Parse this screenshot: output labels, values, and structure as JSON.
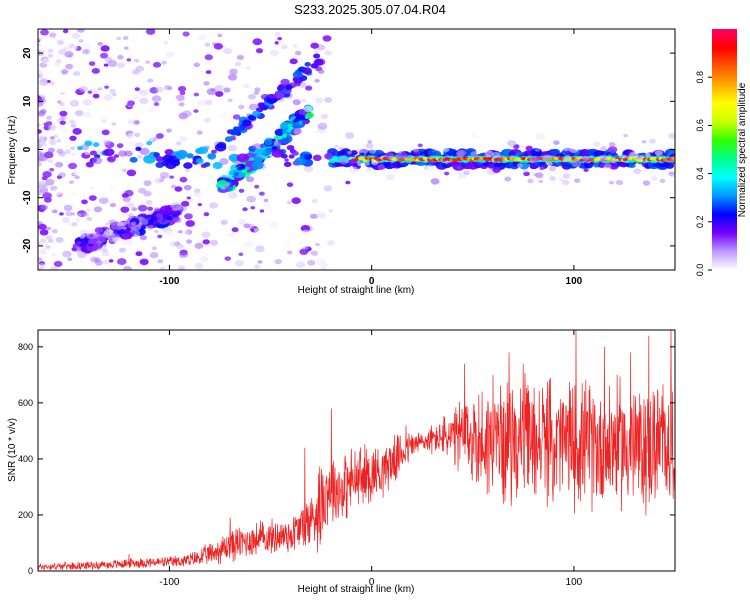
{
  "title": "S233.2025.305.07.04.R04",
  "colors": {
    "snr_line": "#ee2222",
    "heat_base": "#6a00ff",
    "heat_ridge": "#00ff66",
    "heat_core": "#ff2020"
  },
  "chart_data": [
    {
      "type": "heatmap",
      "title": "S233.2025.305.07.04.R04",
      "xlabel": "Height of straight line (km)",
      "ylabel": "Frequency (Hz)",
      "xlim": [
        -165,
        150
      ],
      "ylim": [
        -25,
        25
      ],
      "xticks": [
        -100,
        0,
        100
      ],
      "xtick_labels": [
        "-100",
        "0",
        "100"
      ],
      "yticks": [
        -20,
        -10,
        0,
        10,
        20
      ],
      "ytick_labels": [
        "-20",
        "-10",
        "0",
        "10",
        "20"
      ],
      "colorbar": {
        "label": "Normalized spectral amplitude",
        "range": [
          0,
          1
        ],
        "ticks": [
          0.0,
          0.2,
          0.4,
          0.6,
          0.8
        ],
        "tick_labels": [
          "0.0",
          "0.2",
          "0.4",
          "0.6",
          "0.8"
        ],
        "stops": [
          "#ffffff",
          "#bb99ff",
          "#7700ff",
          "#0000ff",
          "#0099ff",
          "#00ffff",
          "#00ff88",
          "#33ff00",
          "#ccff00",
          "#ffff00",
          "#ffaa00",
          "#ff5500",
          "#ff0000",
          "#ff0066"
        ]
      },
      "features": [
        {
          "name": "horizontal ridge",
          "x_range": [
            -20,
            150
          ],
          "frequency_hz": -2,
          "amplitude_range": [
            0.4,
            1.0
          ]
        },
        {
          "name": "rising branch",
          "x_range": [
            -75,
            -30
          ],
          "frequency_start_hz": -8,
          "frequency_end_hz": 8,
          "amplitude_range": [
            0.2,
            0.5
          ]
        },
        {
          "name": "lower branch",
          "x_range": [
            -145,
            -95
          ],
          "frequency_start_hz": -20,
          "frequency_end_hz": -13,
          "amplitude_range": [
            0.1,
            0.25
          ]
        },
        {
          "name": "scattered low-level noise",
          "x_range": [
            -165,
            150
          ],
          "frequency_range_hz": [
            -25,
            25
          ],
          "amplitude_range": [
            0.0,
            0.15
          ]
        }
      ]
    },
    {
      "type": "line",
      "xlabel": "Height of straight line (km)",
      "ylabel": "SNR (10 * v/v)",
      "xlim": [
        -165,
        150
      ],
      "ylim": [
        0,
        860
      ],
      "xticks": [
        -100,
        0,
        100
      ],
      "xtick_labels": [
        "-100",
        "0",
        "100"
      ],
      "yticks": [
        0,
        200,
        400,
        600,
        800
      ],
      "ytick_labels": [
        "0",
        "200",
        "400",
        "600",
        "800"
      ],
      "series": [
        {
          "name": "SNR",
          "x": [
            -165,
            -150,
            -130,
            -120,
            -110,
            -100,
            -90,
            -80,
            -70,
            -60,
            -50,
            -40,
            -30,
            -25,
            -22,
            -20,
            -15,
            -10,
            -5,
            0,
            5,
            10,
            15,
            20,
            25,
            30,
            35,
            40,
            45,
            50,
            55,
            60,
            65,
            70,
            75,
            80,
            85,
            90,
            95,
            100,
            105,
            110,
            115,
            120,
            125,
            130,
            135,
            140,
            145,
            150
          ],
          "mean": [
            15,
            18,
            22,
            28,
            30,
            32,
            38,
            60,
            90,
            110,
            120,
            130,
            180,
            250,
            290,
            300,
            290,
            320,
            330,
            350,
            360,
            390,
            420,
            450,
            460,
            470,
            480,
            470,
            480,
            470,
            460,
            470,
            460,
            470,
            470,
            460,
            470,
            450,
            460,
            460,
            450,
            450,
            440,
            460,
            450,
            440,
            430,
            450,
            460,
            460
          ],
          "spread": [
            15,
            15,
            18,
            20,
            22,
            22,
            30,
            45,
            70,
            70,
            70,
            80,
            120,
            200,
            150,
            150,
            140,
            140,
            140,
            120,
            110,
            100,
            80,
            60,
            50,
            60,
            80,
            120,
            170,
            200,
            220,
            240,
            240,
            250,
            250,
            250,
            250,
            250,
            250,
            260,
            260,
            260,
            260,
            260,
            260,
            260,
            260,
            260,
            260,
            250
          ],
          "peaks": [
            [
              -120,
              60
            ],
            [
              -70,
              190
            ],
            [
              -55,
              180
            ],
            [
              -20,
              580
            ],
            [
              -33,
              440
            ],
            [
              17,
              520
            ],
            [
              46,
              740
            ],
            [
              60,
              700
            ],
            [
              68,
              780
            ],
            [
              75,
              740
            ],
            [
              101,
              860
            ],
            [
              115,
              800
            ],
            [
              128,
              780
            ],
            [
              137,
              840
            ],
            [
              148,
              860
            ]
          ]
        }
      ]
    }
  ]
}
